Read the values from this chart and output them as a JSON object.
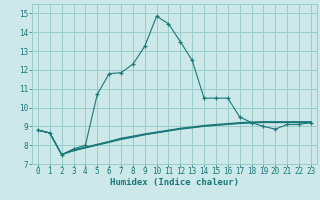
{
  "xlabel": "Humidex (Indice chaleur)",
  "bg_color": "#cce8e8",
  "grid_color": "#99cccc",
  "line_color": "#1a7878",
  "xlim": [
    -0.5,
    23.5
  ],
  "ylim": [
    7,
    15.5
  ],
  "xticks": [
    0,
    1,
    2,
    3,
    4,
    5,
    6,
    7,
    8,
    9,
    10,
    11,
    12,
    13,
    14,
    15,
    16,
    17,
    18,
    19,
    20,
    21,
    22,
    23
  ],
  "yticks": [
    7,
    8,
    9,
    10,
    11,
    12,
    13,
    14,
    15
  ],
  "s1_x": [
    0,
    1,
    2,
    3,
    4,
    5,
    6,
    7,
    8,
    9,
    10,
    11,
    12,
    13,
    14,
    15,
    16,
    17,
    18,
    19,
    20,
    21,
    22,
    23
  ],
  "s1_y": [
    8.8,
    8.65,
    7.5,
    7.8,
    8.0,
    10.7,
    11.8,
    11.85,
    12.3,
    13.25,
    14.85,
    14.45,
    13.5,
    12.5,
    10.5,
    10.5,
    10.5,
    9.5,
    9.2,
    9.0,
    8.85,
    9.1,
    9.1,
    9.2
  ],
  "s2_x": [
    0,
    1,
    2,
    3,
    4,
    5,
    6,
    7,
    8,
    9,
    10,
    11,
    12,
    13,
    14,
    15,
    16,
    17,
    18,
    19,
    20,
    21,
    22,
    23
  ],
  "s2_y": [
    8.8,
    8.65,
    7.5,
    7.7,
    7.85,
    8.0,
    8.15,
    8.3,
    8.42,
    8.55,
    8.65,
    8.75,
    8.85,
    8.92,
    9.0,
    9.05,
    9.1,
    9.15,
    9.18,
    9.2,
    9.2,
    9.2,
    9.2,
    9.2
  ],
  "s3_x": [
    0,
    1,
    2,
    3,
    4,
    5,
    6,
    7,
    8,
    9,
    10,
    11,
    12,
    13,
    14,
    15,
    16,
    17,
    18,
    19,
    20,
    21,
    22,
    23
  ],
  "s3_y": [
    8.8,
    8.65,
    7.5,
    7.75,
    7.9,
    8.05,
    8.2,
    8.37,
    8.48,
    8.6,
    8.7,
    8.8,
    8.9,
    8.97,
    9.05,
    9.1,
    9.15,
    9.2,
    9.23,
    9.25,
    9.25,
    9.25,
    9.25,
    9.25
  ],
  "s4_x": [
    0,
    1,
    2,
    3,
    4,
    5,
    6,
    7,
    8,
    9,
    10,
    11,
    12,
    13,
    14,
    15,
    16,
    17,
    18,
    19,
    20,
    21,
    22,
    23
  ],
  "s4_y": [
    8.8,
    8.65,
    7.5,
    7.73,
    7.87,
    8.02,
    8.17,
    8.33,
    8.45,
    8.57,
    8.67,
    8.77,
    8.87,
    8.95,
    9.02,
    9.07,
    9.12,
    9.17,
    9.2,
    9.22,
    9.22,
    9.22,
    9.22,
    9.22
  ]
}
